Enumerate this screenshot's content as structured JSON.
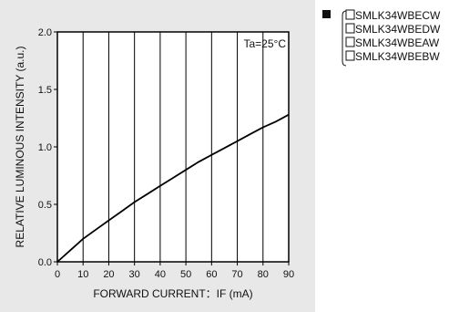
{
  "chart_data": {
    "type": "line",
    "annotation": "Ta=25°C",
    "xlabel": "FORWARD CURRENT：IF (mA)",
    "ylabel": "RELATIVE LUMINOUS INTENSITY (a.u.)",
    "xlim": [
      0,
      90
    ],
    "ylim": [
      0,
      2.0
    ],
    "x_ticks": [
      0,
      10,
      20,
      30,
      40,
      50,
      60,
      70,
      80,
      90
    ],
    "y_ticks": [
      "0.0",
      "0.5",
      "1.0",
      "1.5",
      "2.0"
    ],
    "y_tick_values": [
      0,
      0.5,
      1.0,
      1.5,
      2.0
    ],
    "grid": "vertical",
    "series": [
      {
        "x": [
          0,
          5,
          10,
          15,
          20,
          25,
          30,
          35,
          40,
          45,
          50,
          55,
          60,
          65,
          70,
          75,
          80,
          85,
          90
        ],
        "y": [
          0,
          0.1,
          0.2,
          0.28,
          0.36,
          0.44,
          0.52,
          0.59,
          0.66,
          0.73,
          0.8,
          0.87,
          0.93,
          0.99,
          1.05,
          1.11,
          1.17,
          1.22,
          1.28
        ]
      }
    ]
  },
  "legend": {
    "items": [
      "SMLK34WBECW",
      "SMLK34WBEDW",
      "SMLK34WBEAW",
      "SMLK34WBEBW"
    ],
    "marker_color": "#111111"
  },
  "colors": {
    "panel_bg": "#e8e8e8",
    "plot_bg": "#ffffff",
    "line": "#000000"
  }
}
